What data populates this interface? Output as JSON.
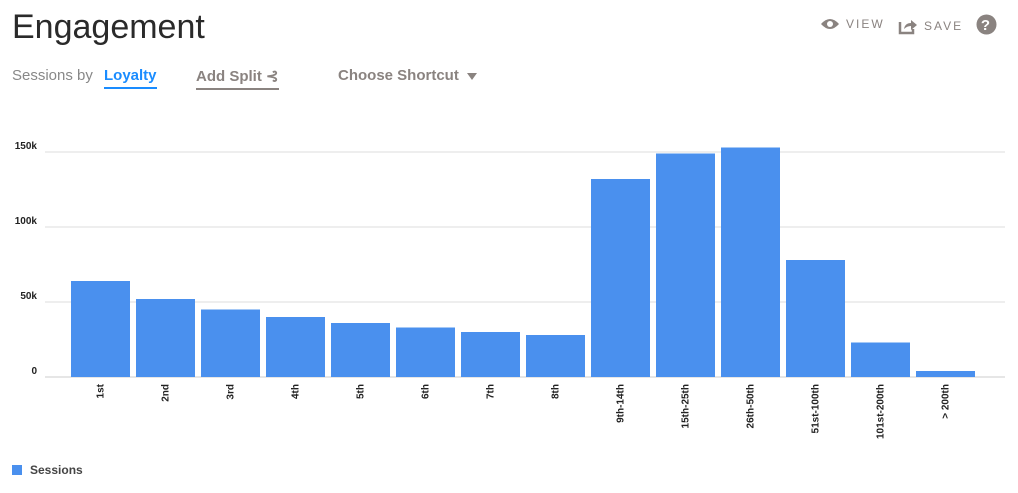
{
  "header": {
    "title": "Engagement",
    "view_label": "VIEW",
    "save_label": "SAVE"
  },
  "controls": {
    "sessions_by": "Sessions by",
    "dimension": "Loyalty",
    "add_split": "Add Split",
    "shortcut": "Choose Shortcut"
  },
  "colors": {
    "bar": "#4a90ee",
    "accent": "#1a8cff"
  },
  "chart_data": {
    "type": "bar",
    "categories": [
      "1st",
      "2nd",
      "3rd",
      "4th",
      "5th",
      "6th",
      "7th",
      "8th",
      "9th-14th",
      "15th-25th",
      "26th-50th",
      "51st-100th",
      "101st-200th",
      "> 200th"
    ],
    "series": [
      {
        "name": "Sessions",
        "values": [
          64000,
          52000,
          45000,
          40000,
          36000,
          33000,
          30000,
          28000,
          132000,
          149000,
          153000,
          78000,
          23000,
          4000
        ]
      }
    ],
    "yticks": [
      0,
      50000,
      100000,
      150000
    ],
    "ytick_labels": [
      "0",
      "50k",
      "100k",
      "150k"
    ],
    "ylim": [
      0,
      150000
    ],
    "grid": true,
    "legend": "bottom-left"
  }
}
